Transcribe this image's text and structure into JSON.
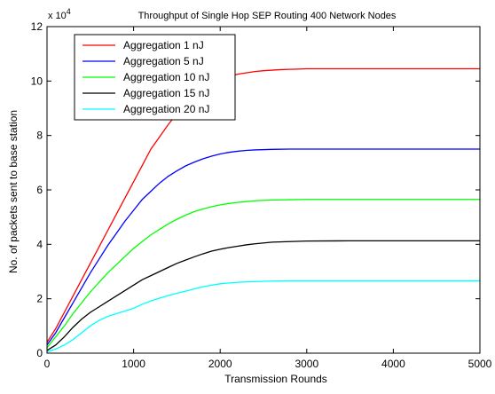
{
  "chart_data": {
    "type": "line",
    "title": "Throughput of Single Hop SEP Routing 400 Network Nodes",
    "xlabel": "Transmission Rounds",
    "ylabel": "No. of packets sent to base station",
    "y_multiplier_base": "x 10",
    "y_multiplier_exp": "4",
    "xlim": [
      0,
      5000
    ],
    "ylim": [
      0,
      12
    ],
    "xticks": [
      0,
      1000,
      2000,
      3000,
      4000,
      5000
    ],
    "xtick_labels": [
      "0",
      "1000",
      "2000",
      "3000",
      "4000",
      "5000"
    ],
    "yticks": [
      0,
      2,
      4,
      6,
      8,
      10,
      12
    ],
    "ytick_labels": [
      "0",
      "2",
      "4",
      "6",
      "8",
      "10",
      "12"
    ],
    "grid": false,
    "legend_position": "top-left",
    "series": [
      {
        "name": "Aggregation 1 nJ",
        "color": "#ff0000",
        "x": [
          0,
          100,
          200,
          300,
          400,
          500,
          600,
          700,
          800,
          900,
          1000,
          1100,
          1200,
          1300,
          1400,
          1500,
          1600,
          1700,
          1800,
          1900,
          2000,
          2100,
          2200,
          2300,
          2400,
          2500,
          2600,
          2700,
          2800,
          2900,
          3000,
          3100,
          3200,
          3500,
          4000,
          4500,
          5000
        ],
        "y": [
          0.4,
          0.9,
          1.5,
          2.1,
          2.7,
          3.3,
          3.9,
          4.5,
          5.1,
          5.7,
          6.3,
          6.9,
          7.5,
          7.95,
          8.4,
          8.8,
          9.15,
          9.45,
          9.7,
          9.9,
          10.05,
          10.15,
          10.25,
          10.3,
          10.35,
          10.38,
          10.4,
          10.42,
          10.43,
          10.44,
          10.45,
          10.45,
          10.45,
          10.45,
          10.45,
          10.45,
          10.45
        ]
      },
      {
        "name": "Aggregation 5 nJ",
        "color": "#0000ff",
        "x": [
          0,
          100,
          200,
          300,
          400,
          500,
          600,
          700,
          800,
          900,
          1000,
          1100,
          1200,
          1300,
          1400,
          1500,
          1600,
          1700,
          1800,
          1900,
          2000,
          2100,
          2200,
          2300,
          2400,
          2600,
          2800,
          3000,
          3500,
          4000,
          4500,
          5000
        ],
        "y": [
          0.3,
          0.75,
          1.3,
          1.85,
          2.4,
          2.95,
          3.45,
          3.95,
          4.4,
          4.85,
          5.25,
          5.65,
          5.95,
          6.25,
          6.5,
          6.7,
          6.88,
          7.02,
          7.14,
          7.24,
          7.32,
          7.38,
          7.42,
          7.45,
          7.47,
          7.49,
          7.5,
          7.5,
          7.5,
          7.5,
          7.5,
          7.5
        ]
      },
      {
        "name": "Aggregation 10 nJ",
        "color": "#00ff00",
        "x": [
          0,
          100,
          200,
          300,
          400,
          500,
          600,
          700,
          800,
          900,
          1000,
          1100,
          1200,
          1300,
          1400,
          1500,
          1600,
          1700,
          1800,
          1900,
          2000,
          2100,
          2200,
          2300,
          2400,
          2600,
          2800,
          3000,
          3500,
          4000,
          4500,
          5000
        ],
        "y": [
          0.2,
          0.6,
          1.0,
          1.45,
          1.85,
          2.25,
          2.6,
          2.95,
          3.25,
          3.55,
          3.85,
          4.1,
          4.35,
          4.55,
          4.75,
          4.92,
          5.07,
          5.2,
          5.3,
          5.38,
          5.45,
          5.5,
          5.54,
          5.57,
          5.6,
          5.63,
          5.64,
          5.65,
          5.65,
          5.65,
          5.65,
          5.65
        ]
      },
      {
        "name": "Aggregation 15 nJ",
        "color": "#000000",
        "x": [
          0,
          100,
          200,
          300,
          400,
          500,
          600,
          700,
          800,
          900,
          1000,
          1100,
          1200,
          1300,
          1400,
          1500,
          1600,
          1700,
          1800,
          1900,
          2000,
          2100,
          2200,
          2300,
          2400,
          2600,
          2800,
          3000,
          3500,
          4000,
          4500,
          5000
        ],
        "y": [
          0.1,
          0.3,
          0.6,
          0.95,
          1.25,
          1.5,
          1.7,
          1.9,
          2.1,
          2.3,
          2.5,
          2.7,
          2.85,
          3.0,
          3.15,
          3.3,
          3.42,
          3.54,
          3.65,
          3.75,
          3.82,
          3.88,
          3.93,
          3.98,
          4.02,
          4.08,
          4.1,
          4.12,
          4.13,
          4.13,
          4.13,
          4.13
        ]
      },
      {
        "name": "Aggregation 20 nJ",
        "color": "#00ffff",
        "x": [
          0,
          100,
          200,
          300,
          400,
          500,
          600,
          700,
          800,
          900,
          1000,
          1100,
          1200,
          1300,
          1400,
          1500,
          1600,
          1700,
          1800,
          1900,
          2000,
          2100,
          2200,
          2300,
          2400,
          2600,
          2800,
          3000,
          3500,
          4000,
          4500,
          5000
        ],
        "y": [
          0.05,
          0.15,
          0.3,
          0.5,
          0.75,
          1.0,
          1.2,
          1.35,
          1.45,
          1.55,
          1.65,
          1.8,
          1.92,
          2.02,
          2.12,
          2.2,
          2.28,
          2.36,
          2.44,
          2.5,
          2.55,
          2.58,
          2.6,
          2.62,
          2.63,
          2.65,
          2.66,
          2.66,
          2.66,
          2.66,
          2.66,
          2.66
        ]
      }
    ]
  }
}
